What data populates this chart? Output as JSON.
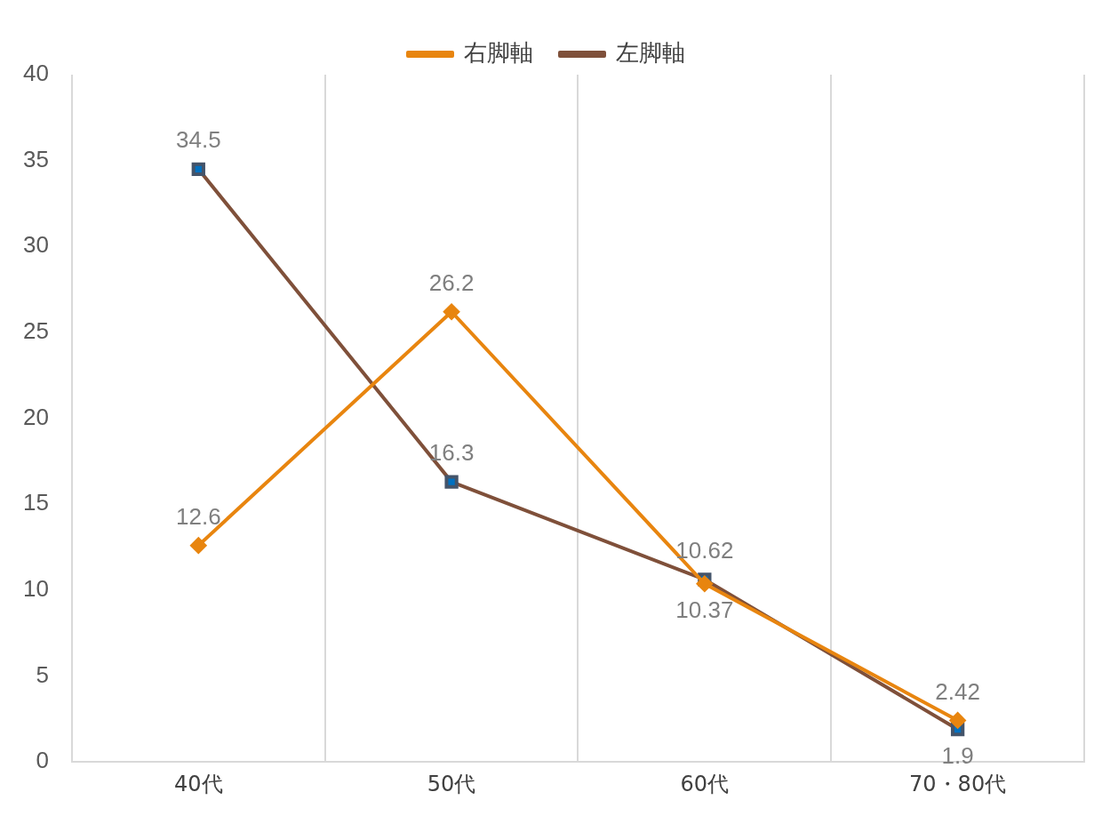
{
  "chart_data": {
    "type": "line",
    "categories": [
      "40代",
      "50代",
      "60代",
      "70・80代"
    ],
    "series": [
      {
        "name": "右脚軸",
        "color": "#e8850f",
        "marker": "diamond",
        "values": [
          12.6,
          26.2,
          10.37,
          2.42
        ]
      },
      {
        "name": "左脚軸",
        "color": "#7f503a",
        "marker": "square",
        "values": [
          34.5,
          16.3,
          10.62,
          1.9
        ]
      }
    ],
    "ylim": [
      0,
      40
    ],
    "yticks": [
      0,
      5,
      10,
      15,
      20,
      25,
      30,
      35,
      40
    ],
    "grid": "x",
    "legend": "top",
    "data_labels": true
  }
}
